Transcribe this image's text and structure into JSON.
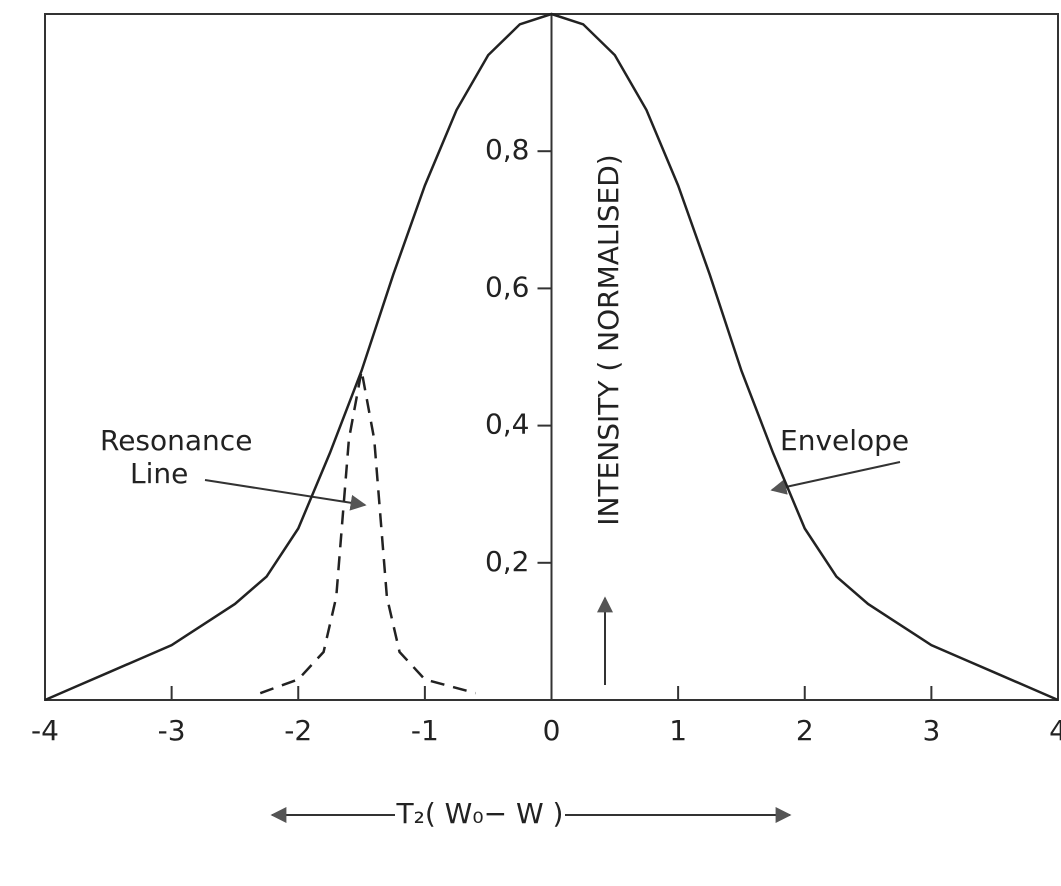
{
  "chart_data": {
    "type": "line",
    "ylabel": "INTENSITY ( NORMALISED)",
    "xlabel": "T₂( W₀− W )",
    "annotations": [
      "Resonance",
      "Line",
      "Envelope"
    ],
    "xlim": [
      -4,
      4
    ],
    "ylim": [
      0,
      1
    ],
    "xticks": [
      -4,
      -3,
      -2,
      -1,
      0,
      1,
      2,
      3,
      4
    ],
    "yticks": [
      {
        "value": 0.2,
        "label": "0,2"
      },
      {
        "value": 0.4,
        "label": "0,4"
      },
      {
        "value": 0.6,
        "label": "0,6"
      },
      {
        "value": 0.8,
        "label": "0,8"
      }
    ],
    "series": [
      {
        "name": "Envelope",
        "color": "#222222",
        "dashed": false,
        "x": [
          -4,
          -3.75,
          -3.5,
          -3.25,
          -3,
          -2.75,
          -2.5,
          -2.25,
          -2,
          -1.75,
          -1.5,
          -1.25,
          -1,
          -0.75,
          -0.5,
          -0.25,
          0,
          0.25,
          0.5,
          0.75,
          1,
          1.25,
          1.5,
          1.75,
          2,
          2.25,
          2.5,
          2.75,
          3,
          3.25,
          3.5,
          3.75,
          4
        ],
        "values": [
          0,
          0.02,
          0.04,
          0.06,
          0.08,
          0.11,
          0.14,
          0.18,
          0.25,
          0.36,
          0.48,
          0.62,
          0.75,
          0.86,
          0.94,
          0.985,
          1,
          0.985,
          0.94,
          0.86,
          0.75,
          0.62,
          0.48,
          0.36,
          0.25,
          0.18,
          0.14,
          0.11,
          0.08,
          0.06,
          0.04,
          0.02,
          0
        ]
      },
      {
        "name": "Resonance Line",
        "color": "#222222",
        "dashed": true,
        "x": [
          -2.3,
          -2,
          -1.8,
          -1.7,
          -1.6,
          -1.5,
          -1.4,
          -1.3,
          -1.2,
          -1,
          -0.6
        ],
        "values": [
          0.01,
          0.03,
          0.07,
          0.15,
          0.38,
          0.48,
          0.38,
          0.15,
          0.07,
          0.03,
          0.01
        ]
      }
    ]
  }
}
